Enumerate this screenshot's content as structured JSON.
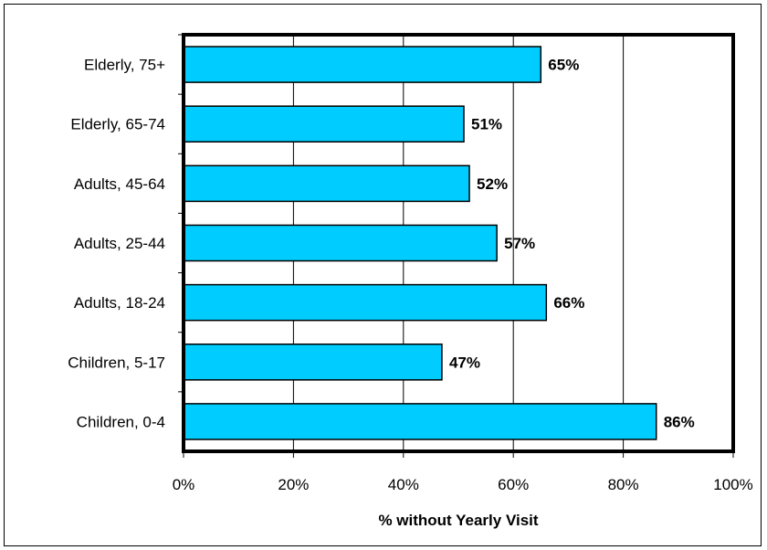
{
  "chart_data": {
    "type": "bar",
    "orientation": "horizontal",
    "categories": [
      "Elderly, 75+",
      "Elderly, 65-74",
      "Adults, 45-64",
      "Adults, 25-44",
      "Adults, 18-24",
      "Children, 5-17",
      "Children, 0-4"
    ],
    "values": [
      65,
      51,
      52,
      57,
      66,
      47,
      86
    ],
    "data_labels": [
      "65%",
      "51%",
      "52%",
      "57%",
      "66%",
      "47%",
      "86%"
    ],
    "xlabel": "% without Yearly Visit",
    "ylabel": "",
    "xlim": [
      0,
      100
    ],
    "x_ticks": [
      0,
      20,
      40,
      60,
      80,
      100
    ],
    "x_tick_labels": [
      "0%",
      "20%",
      "40%",
      "60%",
      "80%",
      "100%"
    ],
    "grid": "vertical",
    "legend": "none",
    "colors": {
      "bar": "#00CCFF",
      "bar_border": "#000000",
      "grid": "#000000"
    }
  }
}
